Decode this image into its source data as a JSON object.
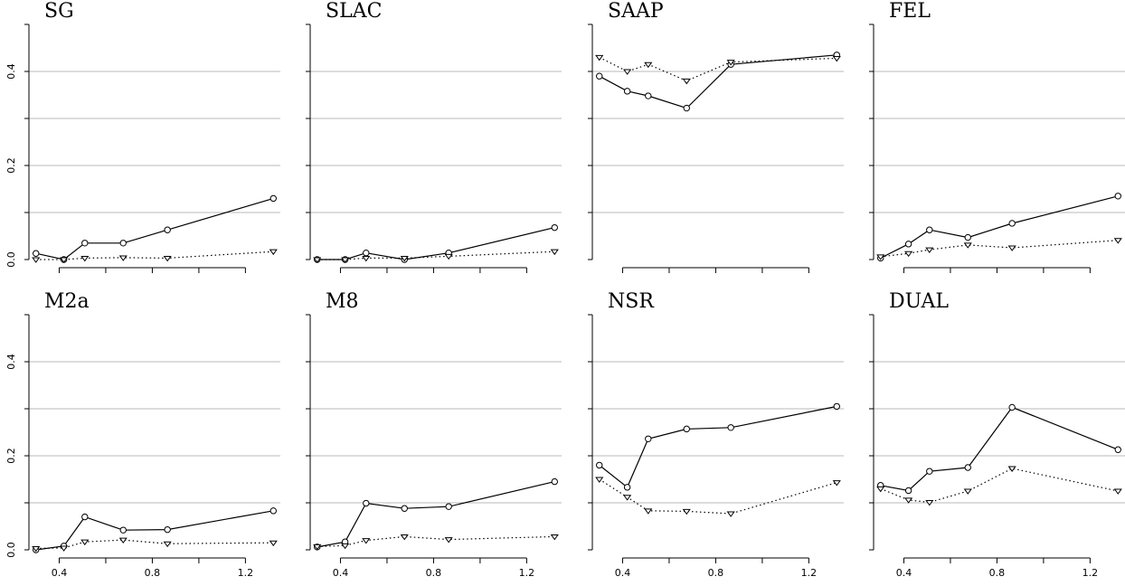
{
  "chart_data": [
    {
      "type": "line",
      "title": "SG",
      "x": [
        0.3,
        0.42,
        0.51,
        0.675,
        0.865,
        1.32
      ],
      "series": [
        {
          "marker": "circle",
          "linestyle": "solid",
          "values": [
            0.013,
            0.0,
            0.035,
            0.035,
            0.063,
            0.13
          ]
        },
        {
          "marker": "triangle",
          "linestyle": "dotted",
          "values": [
            0.0,
            0.0,
            0.003,
            0.004,
            0.003,
            0.017
          ]
        }
      ],
      "ylim": [
        0,
        0.5
      ],
      "yticks": [
        "0.0",
        "0.2",
        "0.4"
      ],
      "xticks": []
    },
    {
      "type": "line",
      "title": "SLAC",
      "x": [
        0.3,
        0.42,
        0.51,
        0.675,
        0.865,
        1.32
      ],
      "series": [
        {
          "marker": "circle",
          "linestyle": "solid",
          "values": [
            0.0,
            0.0,
            0.014,
            0.0,
            0.014,
            0.068
          ]
        },
        {
          "marker": "triangle",
          "linestyle": "dotted",
          "values": [
            0.0,
            0.0,
            0.003,
            0.003,
            0.007,
            0.017
          ]
        }
      ],
      "ylim": [
        0,
        0.5
      ],
      "yticks": [],
      "xticks": []
    },
    {
      "type": "line",
      "title": "SAAP",
      "x": [
        0.3,
        0.42,
        0.51,
        0.675,
        0.865,
        1.32
      ],
      "series": [
        {
          "marker": "circle",
          "linestyle": "solid",
          "values": [
            0.39,
            0.358,
            0.348,
            0.322,
            0.415,
            0.435
          ]
        },
        {
          "marker": "triangle",
          "linestyle": "dotted",
          "values": [
            0.43,
            0.4,
            0.415,
            0.38,
            0.42,
            0.428
          ]
        }
      ],
      "ylim": [
        0,
        0.5
      ],
      "yticks": [],
      "xticks": []
    },
    {
      "type": "line",
      "title": "FEL",
      "x": [
        0.3,
        0.42,
        0.51,
        0.675,
        0.865,
        1.32
      ],
      "series": [
        {
          "marker": "circle",
          "linestyle": "solid",
          "values": [
            0.003,
            0.033,
            0.063,
            0.047,
            0.077,
            0.135
          ]
        },
        {
          "marker": "triangle",
          "linestyle": "dotted",
          "values": [
            0.006,
            0.013,
            0.021,
            0.031,
            0.025,
            0.041
          ]
        }
      ],
      "ylim": [
        0,
        0.5
      ],
      "yticks": [],
      "xticks": []
    },
    {
      "type": "line",
      "title": "M2a",
      "x": [
        0.3,
        0.42,
        0.51,
        0.675,
        0.865,
        1.32
      ],
      "series": [
        {
          "marker": "circle",
          "linestyle": "solid",
          "values": [
            0.0,
            0.008,
            0.07,
            0.042,
            0.043,
            0.083
          ]
        },
        {
          "marker": "triangle",
          "linestyle": "dotted",
          "values": [
            0.003,
            0.004,
            0.017,
            0.021,
            0.013,
            0.015
          ]
        }
      ],
      "ylim": [
        0,
        0.5
      ],
      "yticks": [
        "0.0",
        "0.2",
        "0.4"
      ],
      "xticks": [
        "0.4",
        "0.8",
        "1.2"
      ]
    },
    {
      "type": "line",
      "title": "M8",
      "x": [
        0.3,
        0.42,
        0.51,
        0.675,
        0.865,
        1.32
      ],
      "series": [
        {
          "marker": "circle",
          "linestyle": "solid",
          "values": [
            0.006,
            0.017,
            0.099,
            0.088,
            0.092,
            0.145
          ]
        },
        {
          "marker": "triangle",
          "linestyle": "dotted",
          "values": [
            0.007,
            0.009,
            0.02,
            0.028,
            0.022,
            0.028
          ]
        }
      ],
      "ylim": [
        0,
        0.5
      ],
      "yticks": [],
      "xticks": [
        "0.4",
        "0.8",
        "1.2"
      ]
    },
    {
      "type": "line",
      "title": "NSR",
      "x": [
        0.3,
        0.42,
        0.51,
        0.675,
        0.865,
        1.32
      ],
      "series": [
        {
          "marker": "circle",
          "linestyle": "solid",
          "values": [
            0.18,
            0.133,
            0.236,
            0.257,
            0.26,
            0.305
          ]
        },
        {
          "marker": "triangle",
          "linestyle": "dotted",
          "values": [
            0.15,
            0.112,
            0.083,
            0.082,
            0.077,
            0.143
          ]
        }
      ],
      "ylim": [
        0,
        0.5
      ],
      "yticks": [],
      "xticks": [
        "0.4",
        "0.8",
        "1.2"
      ]
    },
    {
      "type": "line",
      "title": "DUAL",
      "x": [
        0.3,
        0.42,
        0.51,
        0.675,
        0.865,
        1.32
      ],
      "series": [
        {
          "marker": "circle",
          "linestyle": "solid",
          "values": [
            0.137,
            0.126,
            0.167,
            0.175,
            0.303,
            0.213
          ]
        },
        {
          "marker": "triangle",
          "linestyle": "dotted",
          "values": [
            0.13,
            0.106,
            0.101,
            0.125,
            0.173,
            0.125
          ]
        }
      ],
      "ylim": [
        0,
        0.5
      ],
      "yticks": [],
      "xticks": [
        "0.4",
        "0.8",
        "1.2"
      ]
    }
  ]
}
